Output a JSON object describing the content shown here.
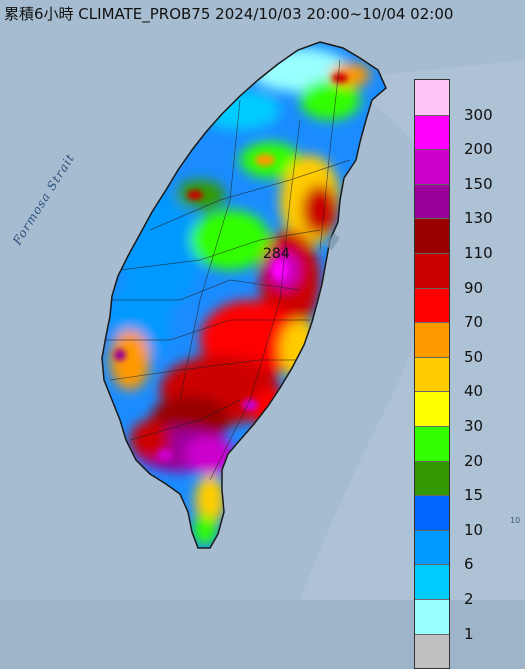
{
  "title": "累積6小時 CLIMATE_PROB75 2024/10/03 20:00~10/04 02:00",
  "sea_label": "Formosa Strait",
  "peak_value": "284",
  "legend": {
    "entries": [
      {
        "label": "300",
        "color": "#fdc6f7"
      },
      {
        "label": "200",
        "color": "#ff00ff"
      },
      {
        "label": "150",
        "color": "#cc00cc"
      },
      {
        "label": "130",
        "color": "#990099"
      },
      {
        "label": "110",
        "color": "#990000"
      },
      {
        "label": "90",
        "color": "#cc0000"
      },
      {
        "label": "70",
        "color": "#ff0000"
      },
      {
        "label": "50",
        "color": "#ff9900"
      },
      {
        "label": "40",
        "color": "#ffcc00"
      },
      {
        "label": "30",
        "color": "#ffff00"
      },
      {
        "label": "20",
        "color": "#33ff00"
      },
      {
        "label": "15",
        "color": "#339900"
      },
      {
        "label": "10",
        "color": "#0066ff"
      },
      {
        "label": "6",
        "color": "#0099ff"
      },
      {
        "label": "2",
        "color": "#00ccff"
      },
      {
        "label": "1",
        "color": "#99ffff"
      },
      {
        "label": "",
        "color": "#c0c0c0"
      }
    ]
  },
  "colors": {
    "sea": "#9db4c9",
    "land_base": "#1a8cff"
  }
}
